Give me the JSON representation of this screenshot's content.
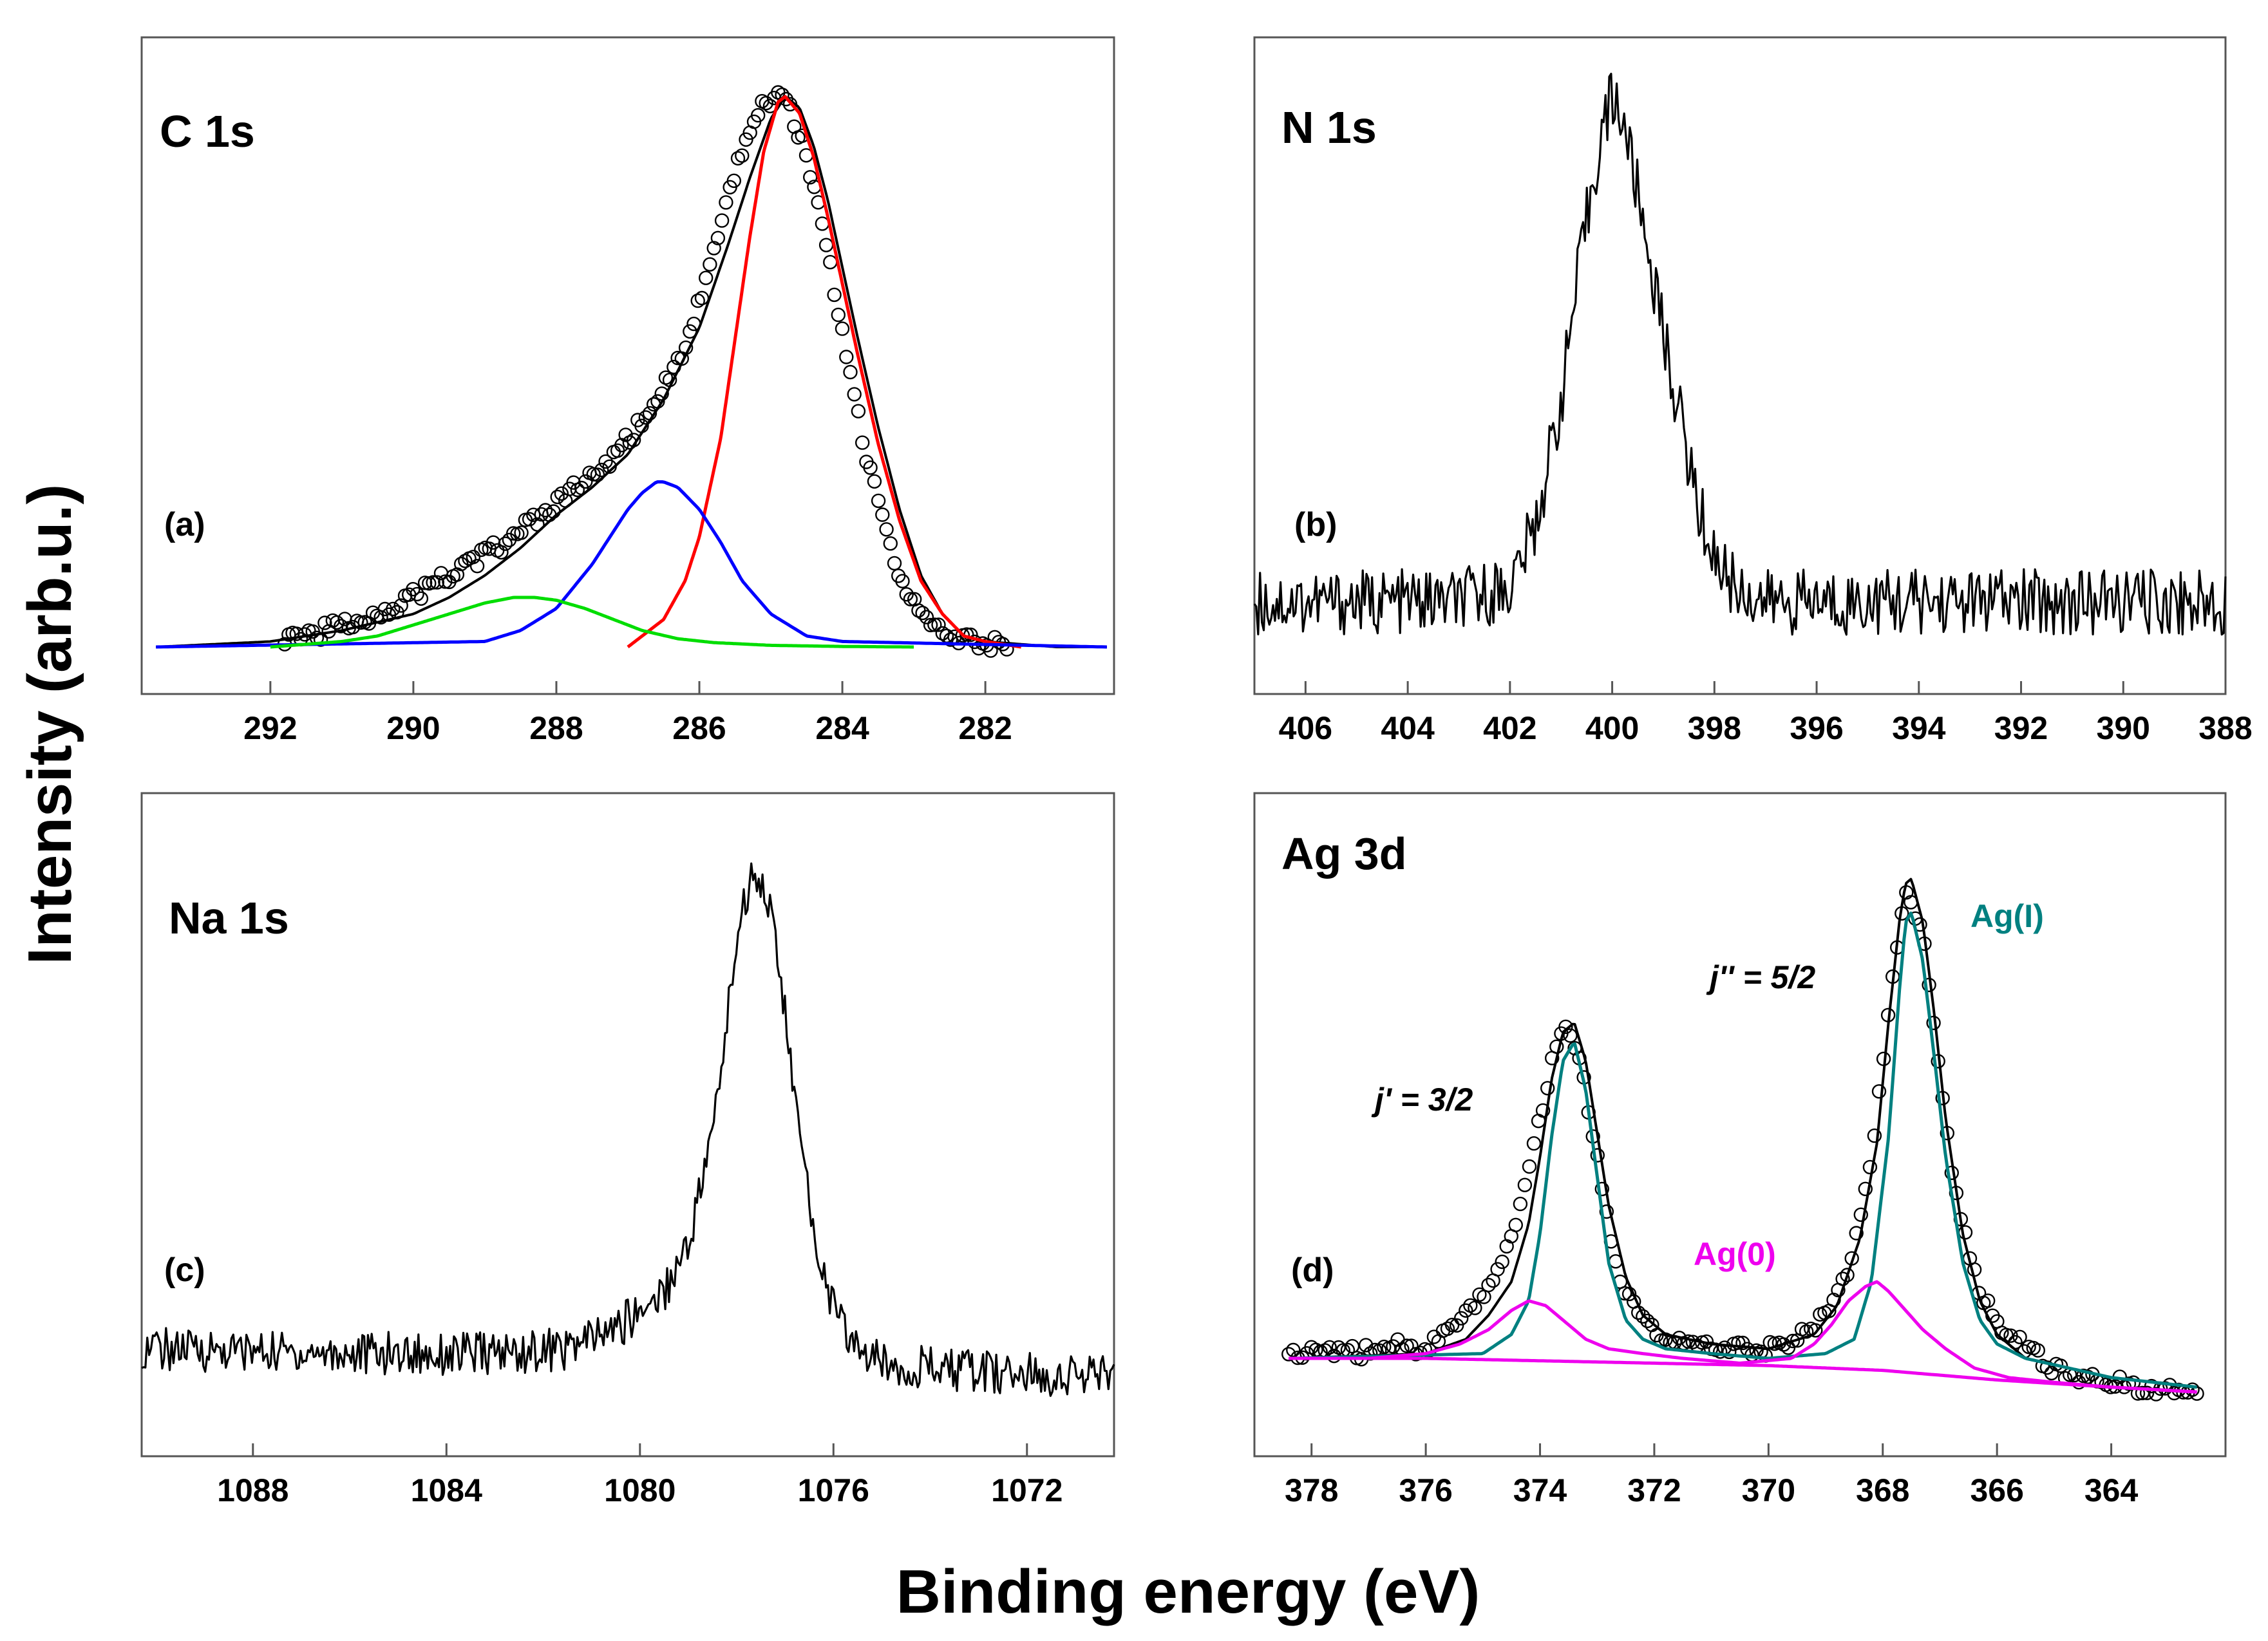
{
  "figure": {
    "ylabel": "Intensity (arb.u.)",
    "xlabel": "Binding energy (eV)"
  },
  "chart_data": [
    {
      "type": "line",
      "panel_label": "(a)",
      "title": "C 1s",
      "xlim": [
        293.8,
        280.2
      ],
      "x_ticks": [
        292,
        290,
        288,
        286,
        284,
        282
      ],
      "grid": false,
      "series": [
        {
          "role": "raw",
          "style": "circles",
          "color": "#000000",
          "x": [
            291.8,
            291.2,
            290.8,
            290.3,
            289.9,
            289.5,
            289.1,
            288.7,
            288.3,
            288.0,
            287.7,
            287.4,
            287.1,
            286.8,
            286.5,
            286.2,
            285.9,
            285.7,
            285.5,
            285.3,
            285.1,
            284.9,
            284.7,
            284.5,
            284.3,
            284.1,
            283.9,
            283.7,
            283.5,
            283.3,
            283.1,
            282.9,
            282.7,
            282.5,
            282.3,
            282.0,
            281.7
          ],
          "y": [
            0.02,
            0.03,
            0.05,
            0.07,
            0.1,
            0.13,
            0.16,
            0.19,
            0.23,
            0.26,
            0.29,
            0.32,
            0.36,
            0.41,
            0.47,
            0.55,
            0.66,
            0.76,
            0.86,
            0.94,
            0.99,
            1.0,
            0.97,
            0.89,
            0.78,
            0.64,
            0.5,
            0.37,
            0.26,
            0.17,
            0.1,
            0.06,
            0.03,
            0.02,
            0.01,
            0.01,
            0.0
          ]
        },
        {
          "role": "envelope",
          "color": "#000000",
          "x": [
            293.6,
            292,
            291,
            290,
            289.5,
            289,
            288.5,
            288,
            287.5,
            287,
            286.5,
            286,
            285.6,
            285.3,
            285.0,
            284.8,
            284.6,
            284.4,
            284.2,
            284.0,
            283.8,
            283.5,
            283.2,
            282.9,
            282.6,
            282.3,
            282,
            281,
            280.3
          ],
          "y": [
            0.0,
            0.01,
            0.03,
            0.06,
            0.09,
            0.13,
            0.18,
            0.24,
            0.29,
            0.35,
            0.45,
            0.58,
            0.73,
            0.85,
            0.96,
            1.0,
            0.98,
            0.91,
            0.81,
            0.69,
            0.57,
            0.4,
            0.25,
            0.13,
            0.06,
            0.02,
            0.01,
            0.0,
            0.0
          ]
        },
        {
          "role": "component",
          "color": "#ff0000",
          "x": [
            287.0,
            286.5,
            286.2,
            286.0,
            285.7,
            285.5,
            285.3,
            285.1,
            284.9,
            284.8,
            284.6,
            284.4,
            284.2,
            284.0,
            283.8,
            283.5,
            283.2,
            282.9,
            282.6,
            282.3,
            282.0,
            281.5
          ],
          "y": [
            0.0,
            0.05,
            0.12,
            0.2,
            0.38,
            0.56,
            0.74,
            0.9,
            0.99,
            1.0,
            0.97,
            0.89,
            0.78,
            0.66,
            0.54,
            0.37,
            0.23,
            0.12,
            0.06,
            0.02,
            0.01,
            0.0
          ]
        },
        {
          "role": "component",
          "color": "#0000ff",
          "x": [
            293.6,
            289,
            288.5,
            288,
            287.5,
            287.2,
            287.0,
            286.8,
            286.6,
            286.5,
            286.3,
            286.0,
            285.7,
            285.4,
            285.0,
            284.5,
            284.0,
            280.3
          ],
          "y": [
            0.0,
            0.01,
            0.03,
            0.07,
            0.15,
            0.21,
            0.25,
            0.28,
            0.3,
            0.3,
            0.29,
            0.25,
            0.19,
            0.12,
            0.06,
            0.02,
            0.01,
            0.0
          ]
        },
        {
          "role": "component",
          "color": "#00dd00",
          "x": [
            292,
            291,
            290.5,
            290,
            289.5,
            289,
            288.6,
            288.3,
            288.0,
            287.6,
            287.2,
            286.8,
            286.3,
            285.8,
            285,
            284,
            283
          ],
          "y": [
            0.0,
            0.01,
            0.02,
            0.04,
            0.06,
            0.08,
            0.09,
            0.09,
            0.085,
            0.07,
            0.05,
            0.03,
            0.015,
            0.008,
            0.003,
            0.001,
            0.0
          ]
        }
      ]
    },
    {
      "type": "line",
      "panel_label": "(b)",
      "title": "N 1s",
      "xlim": [
        407,
        388
      ],
      "x_ticks": [
        406,
        404,
        402,
        400,
        398,
        396,
        394,
        392,
        390,
        388
      ],
      "grid": false,
      "series": [
        {
          "role": "raw",
          "color": "#000000",
          "x": [
            407,
            403,
            402,
            401.5,
            401,
            400.7,
            400.4,
            400.2,
            400.0,
            399.8,
            399.6,
            399.3,
            399.0,
            398.6,
            398.3,
            398.0,
            397.6,
            397,
            394,
            390,
            388
          ],
          "y": [
            0.0,
            0.0,
            0.03,
            0.15,
            0.4,
            0.62,
            0.82,
            0.93,
            1.0,
            0.96,
            0.86,
            0.7,
            0.53,
            0.33,
            0.18,
            0.09,
            0.03,
            0.0,
            0.0,
            0.0,
            0.0
          ]
        }
      ]
    },
    {
      "type": "line",
      "panel_label": "(c)",
      "title": "Na 1s",
      "xlim": [
        1090.3,
        1070.2
      ],
      "x_ticks": [
        1088,
        1084,
        1080,
        1076,
        1072
      ],
      "grid": false,
      "series": [
        {
          "role": "raw",
          "color": "#000000",
          "x": [
            1090.3,
            1086,
            1083,
            1081.5,
            1080.5,
            1079.5,
            1079.0,
            1078.5,
            1078.2,
            1078.0,
            1077.8,
            1077.6,
            1077.4,
            1077.2,
            1077.0,
            1076.8,
            1076.5,
            1076.2,
            1075.9,
            1075.5,
            1075,
            1073,
            1070.2
          ],
          "y": [
            0.0,
            -0.01,
            -0.01,
            0.0,
            0.04,
            0.12,
            0.22,
            0.45,
            0.68,
            0.86,
            0.95,
            1.0,
            0.96,
            0.85,
            0.7,
            0.52,
            0.3,
            0.15,
            0.06,
            0.0,
            -0.03,
            -0.05,
            -0.06
          ]
        }
      ]
    },
    {
      "type": "line",
      "panel_label": "(d)",
      "title": "Ag 3d",
      "xlim": [
        379,
        362
      ],
      "x_ticks": [
        378,
        376,
        374,
        372,
        370,
        368,
        366,
        364
      ],
      "grid": false,
      "annotations": [
        "Ag(I)",
        "Ag(0)",
        "j'' = 5/2",
        "j' = 3/2"
      ],
      "series": [
        {
          "role": "raw",
          "style": "circles",
          "color": "#000000",
          "x": [
            378.4,
            377.8,
            377.2,
            376.6,
            376.0,
            375.5,
            375.0,
            374.6,
            374.2,
            373.9,
            373.6,
            373.3,
            373.0,
            372.7,
            372.3,
            371.8,
            371.0,
            370.0,
            369.2,
            368.6,
            368.2,
            367.9,
            367.6,
            367.3,
            367.0,
            366.7,
            366.3,
            365.9,
            365.5,
            365.0,
            364.5,
            364.0,
            363.5,
            363.0,
            362.5
          ],
          "y": [
            0.0,
            0.02,
            0.01,
            0.03,
            0.02,
            0.06,
            0.13,
            0.22,
            0.38,
            0.56,
            0.7,
            0.62,
            0.42,
            0.2,
            0.09,
            0.04,
            0.02,
            0.02,
            0.06,
            0.18,
            0.4,
            0.72,
            0.99,
            0.88,
            0.58,
            0.32,
            0.14,
            0.06,
            0.02,
            -0.02,
            -0.04,
            -0.05,
            -0.06,
            -0.06,
            -0.07
          ]
        },
        {
          "role": "envelope",
          "color": "#000000",
          "x": [
            378.4,
            376,
            375.3,
            374.9,
            374.5,
            374.2,
            374.0,
            373.8,
            373.6,
            373.4,
            373.2,
            373.0,
            372.8,
            372.5,
            372.2,
            371.8,
            371.0,
            370.0,
            369.2,
            368.8,
            368.4,
            368.1,
            367.9,
            367.7,
            367.6,
            367.5,
            367.3,
            367.1,
            366.9,
            366.6,
            366.3,
            366.0,
            365.5,
            364,
            362.5
          ],
          "y": [
            0.0,
            0.01,
            0.04,
            0.09,
            0.16,
            0.28,
            0.42,
            0.58,
            0.68,
            0.7,
            0.62,
            0.47,
            0.32,
            0.17,
            0.09,
            0.05,
            0.03,
            0.02,
            0.05,
            0.11,
            0.25,
            0.45,
            0.7,
            0.92,
            0.99,
            1.0,
            0.91,
            0.72,
            0.5,
            0.26,
            0.12,
            0.05,
            0.0,
            -0.04,
            -0.06
          ]
        },
        {
          "role": "component",
          "name": "Ag(I)",
          "color": "#008080",
          "x": [
            378.4,
            375,
            374.5,
            374.2,
            374.0,
            373.8,
            373.6,
            373.4,
            373.2,
            373.0,
            372.8,
            372.5,
            372.2,
            371.8,
            371.0,
            370.0,
            369.0,
            368.5,
            368.2,
            367.9,
            367.7,
            367.6,
            367.5,
            367.3,
            367.1,
            366.9,
            366.6,
            366.3,
            366.0,
            365.5,
            364,
            362.5
          ],
          "y": [
            0.0,
            0.01,
            0.05,
            0.12,
            0.26,
            0.46,
            0.62,
            0.66,
            0.56,
            0.38,
            0.2,
            0.08,
            0.04,
            0.02,
            0.01,
            0.0,
            0.01,
            0.04,
            0.16,
            0.46,
            0.78,
            0.91,
            0.93,
            0.83,
            0.63,
            0.42,
            0.2,
            0.08,
            0.03,
            0.0,
            -0.04,
            -0.06
          ]
        },
        {
          "role": "component",
          "name": "Ag(0)",
          "color": "#ee00ee",
          "x": [
            378.4,
            377,
            376,
            375.4,
            374.9,
            374.5,
            374.2,
            373.9,
            373.6,
            373.2,
            372.8,
            372.2,
            371.5,
            370.5,
            369.6,
            369.2,
            368.9,
            368.6,
            368.3,
            368.1,
            367.9,
            367.6,
            367.3,
            366.9,
            366.4,
            365.8,
            365,
            364,
            362.5
          ],
          "y": [
            0.0,
            0.0,
            0.01,
            0.03,
            0.06,
            0.1,
            0.12,
            0.11,
            0.08,
            0.04,
            0.02,
            0.01,
            0.0,
            -0.01,
            0.0,
            0.03,
            0.07,
            0.12,
            0.15,
            0.16,
            0.14,
            0.1,
            0.06,
            0.02,
            -0.02,
            -0.04,
            -0.05,
            -0.06,
            -0.07
          ]
        },
        {
          "role": "background",
          "color": "#ee00ee",
          "x": [
            378.4,
            376,
            374,
            372,
            370,
            368,
            366,
            364,
            362.5
          ],
          "y": [
            0.0,
            0.0,
            -0.005,
            -0.01,
            -0.015,
            -0.025,
            -0.045,
            -0.06,
            -0.07
          ]
        }
      ]
    }
  ]
}
